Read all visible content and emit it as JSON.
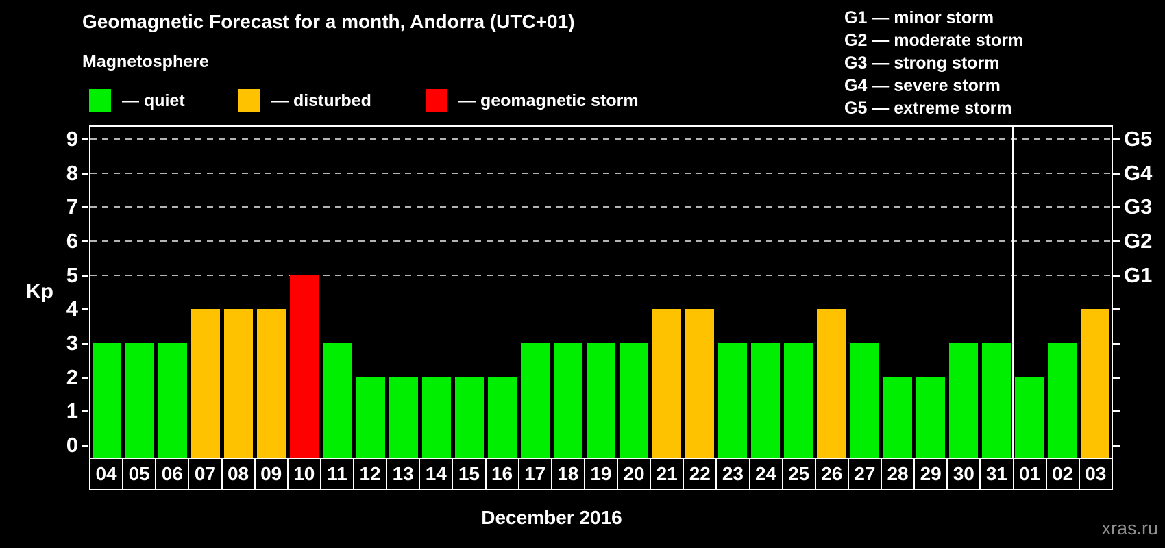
{
  "page": {
    "title": "Geomagnetic Forecast for a month, Andorra (UTC+01)",
    "subtitle": "Magnetosphere",
    "month_label": "December 2016",
    "watermark": "xras.ru"
  },
  "legend": {
    "items": [
      {
        "label": "— quiet",
        "color": "#00ee00",
        "status": "quiet"
      },
      {
        "label": "— disturbed",
        "color": "#ffc200",
        "status": "disturbed"
      },
      {
        "label": "— geomagnetic storm",
        "color": "#ff0000",
        "status": "storm"
      }
    ]
  },
  "g_legend": {
    "items": [
      "G1 — minor storm",
      "G2 — moderate storm",
      "G3 — strong storm",
      "G4 — severe storm",
      "G5 — extreme storm"
    ]
  },
  "chart_data": {
    "type": "bar",
    "title": "Geomagnetic Forecast for a month, Andorra (UTC+01)",
    "ylabel": "Kp",
    "xlabel": "December 2016",
    "ylim": [
      0,
      9
    ],
    "yticks_left": [
      0,
      1,
      2,
      3,
      4,
      5,
      6,
      7,
      8,
      9
    ],
    "gridlines_at": [
      5,
      6,
      7,
      8,
      9
    ],
    "grid": "dashed",
    "legend_position": "top",
    "right_axis": [
      {
        "kp": 5,
        "label": "G1"
      },
      {
        "kp": 6,
        "label": "G2"
      },
      {
        "kp": 7,
        "label": "G3"
      },
      {
        "kp": 8,
        "label": "G4"
      },
      {
        "kp": 9,
        "label": "G5"
      }
    ],
    "month_separator_index": 28,
    "colors": {
      "quiet": "#00ee00",
      "disturbed": "#ffc200",
      "storm": "#ff0000",
      "grid": "#b4b4b4",
      "axis": "#ffffff",
      "background": "#000000",
      "watermark": "#8f8f8f"
    },
    "points": [
      {
        "date": "04",
        "kp": 3,
        "status": "quiet"
      },
      {
        "date": "05",
        "kp": 3,
        "status": "quiet"
      },
      {
        "date": "06",
        "kp": 3,
        "status": "quiet"
      },
      {
        "date": "07",
        "kp": 4,
        "status": "disturbed"
      },
      {
        "date": "08",
        "kp": 4,
        "status": "disturbed"
      },
      {
        "date": "09",
        "kp": 4,
        "status": "disturbed"
      },
      {
        "date": "10",
        "kp": 5,
        "status": "storm"
      },
      {
        "date": "11",
        "kp": 3,
        "status": "quiet"
      },
      {
        "date": "12",
        "kp": 2,
        "status": "quiet"
      },
      {
        "date": "13",
        "kp": 2,
        "status": "quiet"
      },
      {
        "date": "14",
        "kp": 2,
        "status": "quiet"
      },
      {
        "date": "15",
        "kp": 2,
        "status": "quiet"
      },
      {
        "date": "16",
        "kp": 2,
        "status": "quiet"
      },
      {
        "date": "17",
        "kp": 3,
        "status": "quiet"
      },
      {
        "date": "18",
        "kp": 3,
        "status": "quiet"
      },
      {
        "date": "19",
        "kp": 3,
        "status": "quiet"
      },
      {
        "date": "20",
        "kp": 3,
        "status": "quiet"
      },
      {
        "date": "21",
        "kp": 4,
        "status": "disturbed"
      },
      {
        "date": "22",
        "kp": 4,
        "status": "disturbed"
      },
      {
        "date": "23",
        "kp": 3,
        "status": "quiet"
      },
      {
        "date": "24",
        "kp": 3,
        "status": "quiet"
      },
      {
        "date": "25",
        "kp": 3,
        "status": "quiet"
      },
      {
        "date": "26",
        "kp": 4,
        "status": "disturbed"
      },
      {
        "date": "27",
        "kp": 3,
        "status": "quiet"
      },
      {
        "date": "28",
        "kp": 2,
        "status": "quiet"
      },
      {
        "date": "29",
        "kp": 2,
        "status": "quiet"
      },
      {
        "date": "30",
        "kp": 3,
        "status": "quiet"
      },
      {
        "date": "31",
        "kp": 3,
        "status": "quiet"
      },
      {
        "date": "01",
        "kp": 2,
        "status": "quiet"
      },
      {
        "date": "02",
        "kp": 3,
        "status": "quiet"
      },
      {
        "date": "03",
        "kp": 4,
        "status": "disturbed"
      }
    ]
  }
}
